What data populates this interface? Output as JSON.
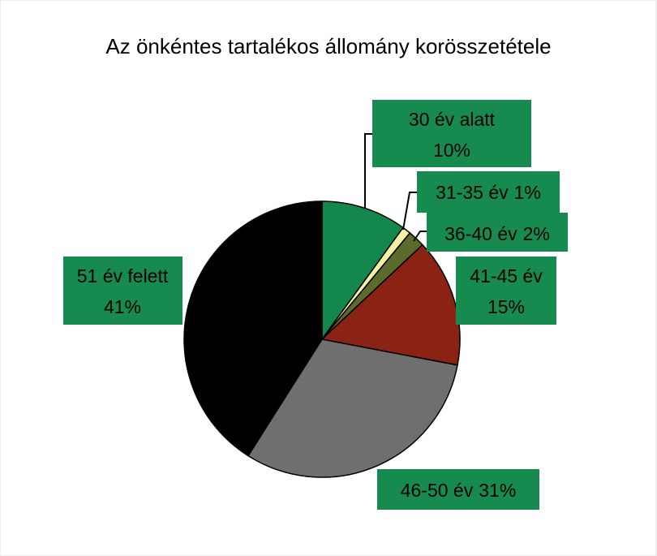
{
  "chart_data": {
    "type": "pie",
    "title": "Az önkéntes tartalékos állomány korösszetétele",
    "categories": [
      "30 év alatt",
      "31-35 év",
      "36-40 év",
      "41-45 év",
      "46-50 év",
      "51 év felett"
    ],
    "values": [
      10,
      1,
      2,
      15,
      31,
      41
    ],
    "value_labels": [
      "10%",
      "1%",
      "2%",
      "15%",
      "31%",
      "41%"
    ],
    "colors": [
      "#14874c",
      "#f6f1a2",
      "#5c6a2b",
      "#8a2314",
      "#6f6f6f",
      "#000000"
    ],
    "label_color": "#178a4f"
  }
}
